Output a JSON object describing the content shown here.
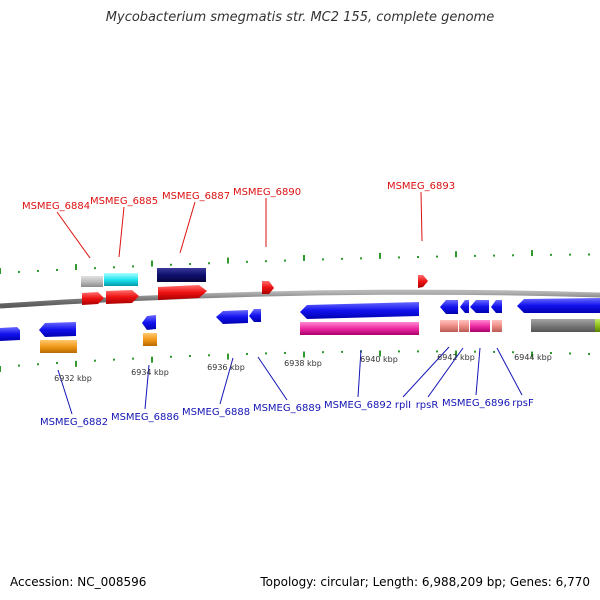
{
  "title": "Mycobacterium smegmatis str. MC2 155, complete genome",
  "footer": {
    "accession": "Accession: NC_008596",
    "summary": "Topology: circular; Length: 6,988,209 bp; Genes: 6,770"
  },
  "colors": {
    "backbone": "#8a8a8a",
    "tick": "#2e9a2e",
    "top_label": "#dd1111",
    "bottom_label": "#1515b5",
    "ruler_text": "#333333"
  },
  "top_labels": [
    {
      "id": "6884",
      "text": "MSMEG_6884"
    },
    {
      "id": "6885",
      "text": "MSMEG_6885"
    },
    {
      "id": "6887",
      "text": "MSMEG_6887"
    },
    {
      "id": "6890",
      "text": "MSMEG_6890"
    },
    {
      "id": "6893",
      "text": "MSMEG_6893"
    }
  ],
  "bottom_labels": [
    {
      "id": "6882",
      "text": "MSMEG_6882"
    },
    {
      "id": "6886",
      "text": "MSMEG_6886"
    },
    {
      "id": "6888",
      "text": "MSMEG_6888"
    },
    {
      "id": "6889",
      "text": "MSMEG_6889"
    },
    {
      "id": "6892",
      "text": "MSMEG_6892"
    },
    {
      "id": "rpll",
      "text": "rplI"
    },
    {
      "id": "rpsr",
      "text": "rpsR"
    },
    {
      "id": "6896",
      "text": "MSMEG_6896"
    },
    {
      "id": "rpsf",
      "text": "rpsF"
    }
  ],
  "ruler_labels": [
    {
      "id": "6932",
      "text": "6932 kbp"
    },
    {
      "id": "6934",
      "text": "6934 kbp"
    },
    {
      "id": "6936",
      "text": "6936 kbp"
    },
    {
      "id": "6938",
      "text": "6938 kbp"
    },
    {
      "id": "6940",
      "text": "6940 kbp"
    },
    {
      "id": "6942",
      "text": "6942 kbp"
    },
    {
      "id": "6944",
      "text": "6944 kbp"
    }
  ]
}
